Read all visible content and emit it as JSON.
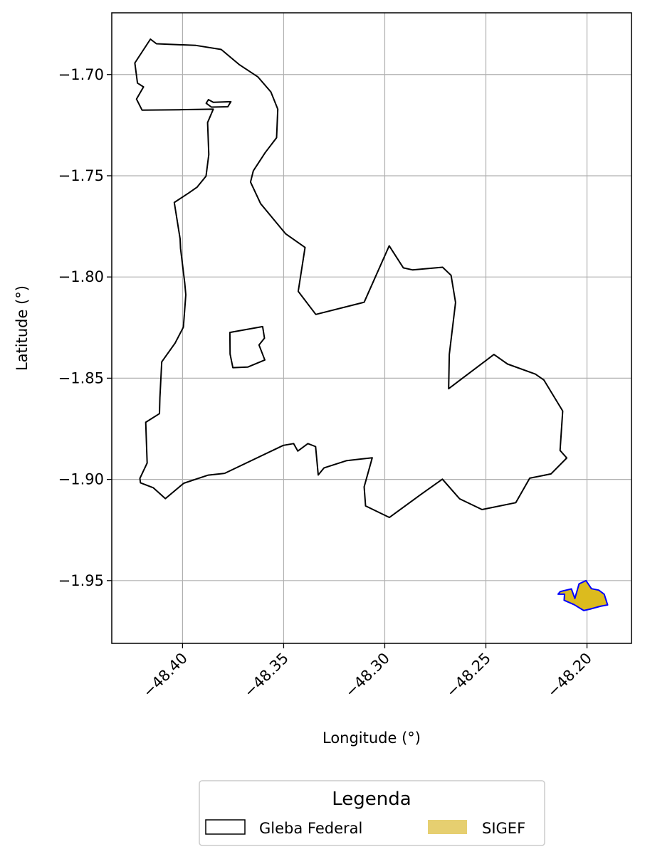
{
  "chart_data": {
    "type": "map",
    "xlabel": "Longitude (°)",
    "ylabel": "Latitude (°)",
    "xlim": [
      -48.435,
      -48.178
    ],
    "ylim": [
      -1.981,
      -1.6695
    ],
    "x_ticks": [
      -48.4,
      -48.35,
      -48.3,
      -48.25,
      -48.2
    ],
    "x_tick_labels": [
      "−48.40",
      "−48.35",
      "−48.30",
      "−48.25",
      "−48.20"
    ],
    "y_ticks": [
      -1.7,
      -1.75,
      -1.8,
      -1.85,
      -1.9,
      -1.95
    ],
    "y_tick_labels": [
      "−1.70",
      "−1.75",
      "−1.80",
      "−1.85",
      "−1.90",
      "−1.95"
    ],
    "x_tick_rotation_deg": 45,
    "grid": true,
    "legend": {
      "title": "Legenda",
      "placement": "bottom-center",
      "columns": 2,
      "entries": [
        {
          "label": "Gleba Federal",
          "style": "outline",
          "edge_color": "#000000",
          "fill_color": "none"
        },
        {
          "label": "SIGEF",
          "style": "filled",
          "edge_color": "#e6cf70",
          "fill_color": "#e6cf70"
        }
      ]
    },
    "layers": [
      {
        "name": "Gleba Federal",
        "edge_color": "#000000",
        "fill_color": "none",
        "polygons": [
          [
            [
              -48.4236,
              -1.6943
            ],
            [
              -48.4159,
              -1.6825
            ],
            [
              -48.4129,
              -1.6848
            ],
            [
              -48.3934,
              -1.6856
            ],
            [
              -48.3809,
              -1.6876
            ],
            [
              -48.3718,
              -1.6952
            ],
            [
              -48.3628,
              -1.7011
            ],
            [
              -48.3563,
              -1.7086
            ],
            [
              -48.3529,
              -1.7171
            ],
            [
              -48.3535,
              -1.7312
            ],
            [
              -48.3591,
              -1.7385
            ],
            [
              -48.365,
              -1.7476
            ],
            [
              -48.3664,
              -1.7531
            ],
            [
              -48.3614,
              -1.7638
            ],
            [
              -48.349,
              -1.7787
            ],
            [
              -48.3394,
              -1.7854
            ],
            [
              -48.3428,
              -1.8071
            ],
            [
              -48.3341,
              -1.8185
            ],
            [
              -48.3102,
              -1.8125
            ],
            [
              -48.2978,
              -1.7846
            ],
            [
              -48.2908,
              -1.7955
            ],
            [
              -48.2863,
              -1.7965
            ],
            [
              -48.2714,
              -1.7952
            ],
            [
              -48.2672,
              -1.7992
            ],
            [
              -48.265,
              -1.8126
            ],
            [
              -48.2681,
              -1.8383
            ],
            [
              -48.2684,
              -1.8552
            ],
            [
              -48.2642,
              -1.852
            ],
            [
              -48.246,
              -1.8383
            ],
            [
              -48.2393,
              -1.843
            ],
            [
              -48.2255,
              -1.848
            ],
            [
              -48.2213,
              -1.8509
            ],
            [
              -48.212,
              -1.8662
            ],
            [
              -48.2133,
              -1.8857
            ],
            [
              -48.21,
              -1.8894
            ],
            [
              -48.2178,
              -1.8973
            ],
            [
              -48.2283,
              -1.8994
            ],
            [
              -48.2352,
              -1.9115
            ],
            [
              -48.2519,
              -1.9149
            ],
            [
              -48.263,
              -1.9096
            ],
            [
              -48.2715,
              -1.8999
            ],
            [
              -48.2821,
              -1.9074
            ],
            [
              -48.2977,
              -1.9188
            ],
            [
              -48.3095,
              -1.9131
            ],
            [
              -48.3102,
              -1.9037
            ],
            [
              -48.3062,
              -1.8893
            ],
            [
              -48.3188,
              -1.8907
            ],
            [
              -48.33,
              -1.8943
            ],
            [
              -48.3329,
              -1.8978
            ],
            [
              -48.3342,
              -1.8838
            ],
            [
              -48.338,
              -1.8823
            ],
            [
              -48.343,
              -1.886
            ],
            [
              -48.3451,
              -1.8823
            ],
            [
              -48.3502,
              -1.8832
            ],
            [
              -48.3792,
              -1.897
            ],
            [
              -48.3873,
              -1.8979
            ],
            [
              -48.3994,
              -1.9019
            ],
            [
              -48.4085,
              -1.9095
            ],
            [
              -48.4145,
              -1.9041
            ],
            [
              -48.4208,
              -1.9017
            ],
            [
              -48.4211,
              -1.8995
            ],
            [
              -48.4175,
              -1.8919
            ],
            [
              -48.4182,
              -1.8718
            ],
            [
              -48.4114,
              -1.8675
            ],
            [
              -48.4112,
              -1.8596
            ],
            [
              -48.4103,
              -1.8419
            ],
            [
              -48.4037,
              -1.8327
            ],
            [
              -48.3996,
              -1.8248
            ],
            [
              -48.3984,
              -1.8088
            ],
            [
              -48.3989,
              -1.803
            ],
            [
              -48.401,
              -1.7859
            ],
            [
              -48.4012,
              -1.7812
            ],
            [
              -48.4041,
              -1.7632
            ],
            [
              -48.3971,
              -1.7586
            ],
            [
              -48.3928,
              -1.7556
            ],
            [
              -48.3884,
              -1.7502
            ],
            [
              -48.387,
              -1.7395
            ],
            [
              -48.3876,
              -1.7237
            ],
            [
              -48.3848,
              -1.7171
            ],
            [
              -48.4016,
              -1.7174
            ],
            [
              -48.42,
              -1.7176
            ],
            [
              -48.4228,
              -1.7121
            ],
            [
              -48.4193,
              -1.7061
            ],
            [
              -48.4223,
              -1.7042
            ]
          ],
          [
            [
              -48.3883,
              -1.7142
            ],
            [
              -48.3872,
              -1.7124
            ],
            [
              -48.3848,
              -1.7137
            ],
            [
              -48.3761,
              -1.7134
            ],
            [
              -48.3776,
              -1.7159
            ],
            [
              -48.3857,
              -1.7161
            ]
          ],
          [
            [
              -48.3766,
              -1.8274
            ],
            [
              -48.3604,
              -1.8245
            ],
            [
              -48.3595,
              -1.8302
            ],
            [
              -48.3622,
              -1.8336
            ],
            [
              -48.3593,
              -1.841
            ],
            [
              -48.3678,
              -1.8445
            ],
            [
              -48.3751,
              -1.8448
            ],
            [
              -48.3765,
              -1.8381
            ]
          ]
        ]
      },
      {
        "name": "SIGEF",
        "edge_color": "#0000ff",
        "fill_color": "#dcbb1e",
        "polygons": [
          [
            [
              -48.2132,
              -1.9554
            ],
            [
              -48.2077,
              -1.9541
            ],
            [
              -48.206,
              -1.9588
            ],
            [
              -48.2039,
              -1.9516
            ],
            [
              -48.2005,
              -1.95
            ],
            [
              -48.1978,
              -1.954
            ],
            [
              -48.1942,
              -1.9547
            ],
            [
              -48.1915,
              -1.9567
            ],
            [
              -48.1898,
              -1.962
            ],
            [
              -48.1934,
              -1.9627
            ],
            [
              -48.1985,
              -1.9641
            ],
            [
              -48.2016,
              -1.9648
            ],
            [
              -48.2063,
              -1.9619
            ],
            [
              -48.2113,
              -1.9597
            ],
            [
              -48.2111,
              -1.9567
            ],
            [
              -48.2143,
              -1.9567
            ]
          ]
        ]
      }
    ]
  }
}
